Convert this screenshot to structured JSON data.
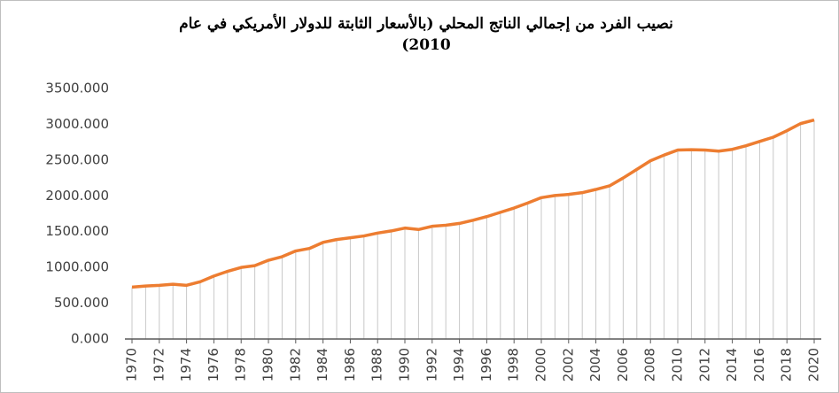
{
  "chart_data": {
    "type": "line",
    "title": "نصيب الفرد من إجمالي الناتج المحلي (بالأسعار الثابتة للدولار الأمريكي في عام 2010)",
    "x": [
      1970,
      1971,
      1972,
      1973,
      1974,
      1975,
      1976,
      1977,
      1978,
      1979,
      1980,
      1981,
      1982,
      1983,
      1984,
      1985,
      1986,
      1987,
      1988,
      1989,
      1990,
      1991,
      1992,
      1993,
      1994,
      1995,
      1996,
      1997,
      1998,
      1999,
      2000,
      2001,
      2002,
      2003,
      2004,
      2005,
      2006,
      2007,
      2008,
      2009,
      2010,
      2011,
      2012,
      2013,
      2014,
      2015,
      2016,
      2017,
      2018,
      2019,
      2020
    ],
    "values": [
      725,
      740,
      750,
      765,
      750,
      800,
      880,
      945,
      1000,
      1025,
      1100,
      1150,
      1230,
      1265,
      1350,
      1390,
      1415,
      1440,
      1480,
      1510,
      1550,
      1530,
      1575,
      1590,
      1615,
      1660,
      1710,
      1770,
      1830,
      1900,
      1975,
      2005,
      2020,
      2045,
      2090,
      2140,
      2250,
      2370,
      2490,
      2570,
      2640,
      2645,
      2640,
      2625,
      2650,
      2700,
      2760,
      2820,
      2910,
      3010,
      3060
    ],
    "color": "#ed7d31",
    "drop_line_color": "#c8c8c8",
    "xlim": [
      1970,
      2020
    ],
    "xticks": [
      1970,
      1972,
      1974,
      1976,
      1978,
      1980,
      1982,
      1984,
      1986,
      1988,
      1990,
      1992,
      1994,
      1996,
      1998,
      2000,
      2002,
      2004,
      2006,
      2008,
      2010,
      2012,
      2014,
      2016,
      2018,
      2020
    ],
    "ylim": [
      0,
      3500
    ],
    "yticks": [
      {
        "value": 0,
        "label": "0.000"
      },
      {
        "value": 500,
        "label": "500.000"
      },
      {
        "value": 1000,
        "label": "1000.000"
      },
      {
        "value": 1500,
        "label": "1500.000"
      },
      {
        "value": 2000,
        "label": "2000.000"
      },
      {
        "value": 2500,
        "label": "2500.000"
      },
      {
        "value": 3000,
        "label": "3000.000"
      },
      {
        "value": 3500,
        "label": "3500.000"
      }
    ],
    "grid": false
  }
}
